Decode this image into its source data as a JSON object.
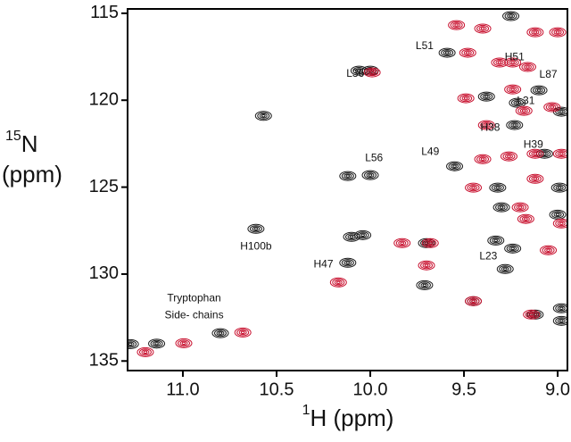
{
  "chart_data": {
    "type": "scatter",
    "xlabel_sup": "1",
    "xlabel": "H (ppm)",
    "ylabel_sup": "15",
    "ylabel": "N",
    "ylabel_line2": "(ppm)",
    "xlim": [
      11.295,
      8.948
    ],
    "ylim": [
      114.75,
      135.55
    ],
    "xticks": [
      {
        "value": 11,
        "label": "11.0"
      },
      10.5,
      {
        "value": 10,
        "label": "10.0"
      },
      9.5,
      {
        "value": 9,
        "label": "9.0"
      }
    ],
    "yticks": [
      115,
      120,
      125,
      130,
      135
    ],
    "series": [
      {
        "color": "#1a1a1a",
        "x": [
          11.28,
          11.14,
          10.8,
          10.61,
          10.57,
          10.12,
          10.1,
          10.04,
          10.12,
          10.0,
          10.06,
          10.0,
          9.59,
          9.7,
          9.71,
          9.55,
          9.45,
          9.33,
          9.3,
          9.28,
          9.24,
          9.25,
          9.1,
          9.12,
          8.98,
          8.98,
          9.38,
          9.23,
          9.07,
          8.98,
          8.99,
          9.0,
          9.32,
          9.215
        ],
        "values": [
          134.03,
          134.0,
          133.4,
          127.4,
          120.9,
          129.35,
          127.86,
          127.76,
          124.36,
          124.31,
          118.3,
          118.3,
          117.27,
          128.22,
          130.64,
          123.8,
          131.56,
          128.07,
          126.16,
          129.71,
          128.53,
          115.16,
          119.43,
          132.33,
          132.69,
          131.97,
          119.79,
          121.43,
          123.08,
          120.66,
          125.03,
          126.58,
          125.03,
          120.15
        ]
      },
      {
        "color": "#c8102e",
        "x": [
          11.2,
          10.995,
          10.68,
          10.17,
          9.99,
          9.48,
          9.83,
          9.7,
          9.45,
          9.2,
          9.54,
          9.4,
          9.12,
          9.0,
          9.31,
          9.24,
          9.16,
          9.49,
          9.24,
          9.38,
          9.18,
          9.12,
          8.98,
          9.26,
          9.4,
          8.98,
          9.17,
          9.12,
          9.45,
          9.05,
          9.14,
          9.68,
          9.03
        ],
        "values": [
          134.49,
          133.98,
          133.36,
          130.48,
          118.4,
          117.27,
          128.22,
          129.5,
          131.56,
          126.16,
          115.68,
          115.88,
          116.09,
          116.09,
          117.83,
          117.83,
          118.09,
          119.89,
          119.38,
          121.43,
          120.61,
          123.08,
          123.08,
          123.23,
          123.39,
          127.09,
          126.83,
          124.52,
          125.03,
          128.63,
          132.33,
          128.22,
          120.4
        ]
      }
    ],
    "annotations": [
      {
        "text": "L51",
        "x": 9.71,
        "y": 116.91
      },
      {
        "text": "L36",
        "x": 10.08,
        "y": 118.5
      },
      {
        "text": "H51",
        "x": 9.23,
        "y": 117.53
      },
      {
        "text": "L87",
        "x": 9.05,
        "y": 118.55
      },
      {
        "text": "L31",
        "x": 9.17,
        "y": 120.05
      },
      {
        "text": "H38",
        "x": 9.36,
        "y": 121.59
      },
      {
        "text": "H39",
        "x": 9.13,
        "y": 122.57
      },
      {
        "text": "L49",
        "x": 9.68,
        "y": 122.98
      },
      {
        "text": "L56",
        "x": 9.98,
        "y": 123.34
      },
      {
        "text": "H100b",
        "x": 10.61,
        "y": 128.43
      },
      {
        "text": "H47",
        "x": 10.25,
        "y": 129.45
      },
      {
        "text": "L23",
        "x": 9.37,
        "y": 129.0
      },
      {
        "text": "Tryptophan",
        "x": 10.94,
        "y": 131.41
      },
      {
        "text": "Side- chains",
        "x": 10.94,
        "y": 132.39
      }
    ]
  }
}
